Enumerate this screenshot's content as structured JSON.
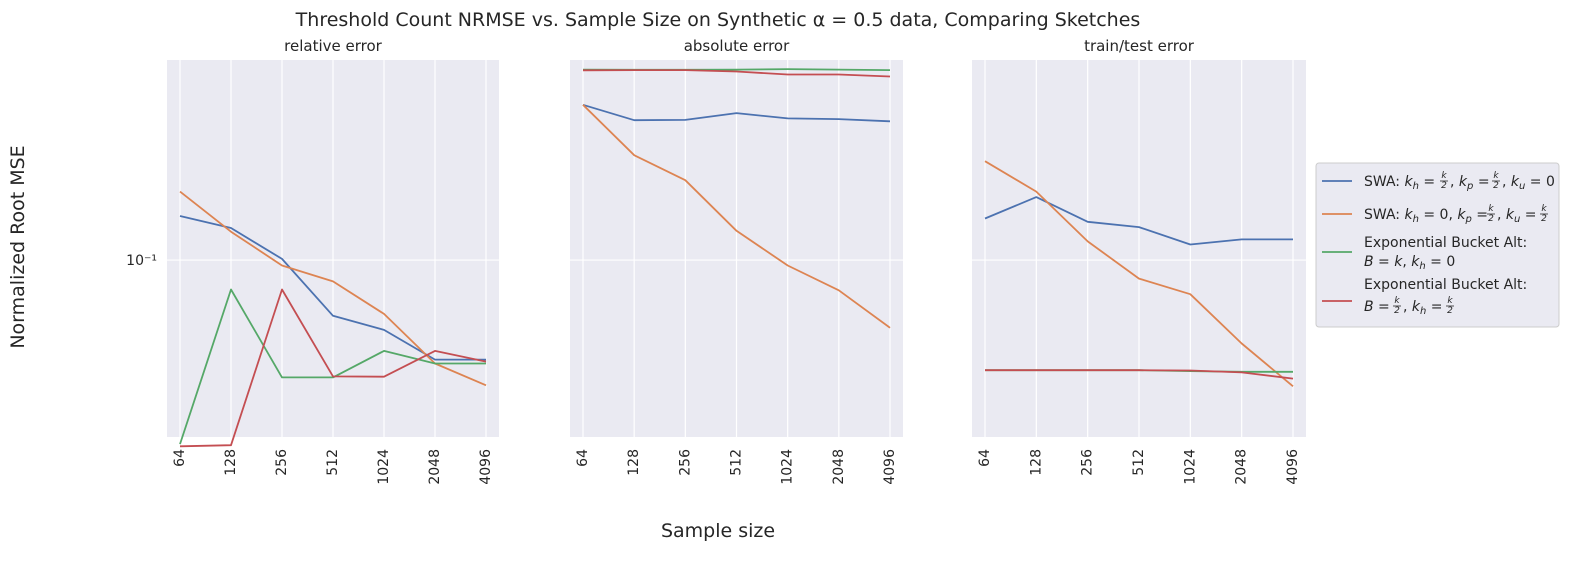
{
  "chart_data": {
    "type": "line",
    "title": "Threshold Count NRMSE vs. Sample Size on Synthetic α = 0.5 data, Comparing Sketches",
    "xlabel": "Sample size",
    "ylabel": "Normalized Root MSE",
    "categories": [
      "64",
      "128",
      "256",
      "512",
      "1024",
      "2048",
      "4096"
    ],
    "y_scale": "log",
    "ylim": [
      0.0225,
      0.54
    ],
    "y_ticks": [
      {
        "value": 0.1,
        "label": "10⁻¹"
      }
    ],
    "grid": true,
    "sharey": true,
    "legend_position": "right, outside plot area",
    "legend": [
      {
        "name": "SWA: kh = k/2, kp = k/2, ku = 0",
        "color": "#4c72b0"
      },
      {
        "name": "SWA: kh = 0, kp = k/2, ku = k/2",
        "color": "#dd8452"
      },
      {
        "name": "Exponential Bucket Alt: B = k, kh = 0",
        "color": "#55a868"
      },
      {
        "name": "Exponential Bucket Alt: B = k/2, kh = k/2",
        "color": "#c44e52"
      }
    ],
    "panels": [
      {
        "title": "relative error",
        "series": [
          {
            "name": "SWA: kh = k/2, kp = k/2, ku = 0",
            "color": "#4c72b0",
            "values": [
              0.145,
              0.131,
              0.101,
              0.0625,
              0.0555,
              0.0432,
              0.0432
            ]
          },
          {
            "name": "SWA: kh = 0, kp = k/2, ku = k/2",
            "color": "#dd8452",
            "values": [
              0.178,
              0.127,
              0.0955,
              0.0835,
              0.0635,
              0.0418,
              0.0348
            ]
          },
          {
            "name": "Exponential Bucket Alt: B = k, kh = 0",
            "color": "#55a868",
            "values": [
              0.0212,
              0.078,
              0.0372,
              0.0372,
              0.0465,
              0.0418,
              0.0418
            ]
          },
          {
            "name": "Exponential Bucket Alt: B = k/2, kh = k/2",
            "color": "#c44e52",
            "values": [
              0.0208,
              0.021,
              0.078,
              0.0375,
              0.0374,
              0.0465,
              0.0425
            ]
          }
        ]
      },
      {
        "title": "absolute error",
        "series": [
          {
            "name": "SWA: kh = k/2, kp = k/2, ku = 0",
            "color": "#4c72b0",
            "values": [
              0.37,
              0.325,
              0.326,
              0.345,
              0.33,
              0.328,
              0.322
            ]
          },
          {
            "name": "SWA: kh = 0, kp = k/2, ku = k/2",
            "color": "#dd8452",
            "values": [
              0.37,
              0.242,
              0.196,
              0.128,
              0.0955,
              0.0775,
              0.0565
            ]
          },
          {
            "name": "Exponential Bucket Alt: B = k, kh = 0",
            "color": "#55a868",
            "values": [
              0.498,
              0.497,
              0.497,
              0.498,
              0.5,
              0.498,
              0.496
            ]
          },
          {
            "name": "Exponential Bucket Alt: B = k/2, kh = k/2",
            "color": "#c44e52",
            "values": [
              0.495,
              0.496,
              0.496,
              0.49,
              0.478,
              0.478,
              0.47
            ]
          }
        ]
      },
      {
        "title": "train/test error",
        "series": [
          {
            "name": "SWA: kh = k/2, kp = k/2, ku = 0",
            "color": "#4c72b0",
            "values": [
              0.142,
              0.17,
              0.138,
              0.132,
              0.114,
              0.119,
              0.119
            ]
          },
          {
            "name": "SWA: kh = 0, kp = k/2, ku = k/2",
            "color": "#dd8452",
            "values": [
              0.23,
              0.178,
              0.117,
              0.0855,
              0.075,
              0.0495,
              0.0345
            ]
          },
          {
            "name": "Exponential Bucket Alt: B = k, kh = 0",
            "color": "#55a868",
            "values": [
              0.0395,
              0.0395,
              0.0395,
              0.0395,
              0.0392,
              0.039,
              0.039
            ]
          },
          {
            "name": "Exponential Bucket Alt: B = k/2, kh = k/2",
            "color": "#c44e52",
            "values": [
              0.0395,
              0.0395,
              0.0395,
              0.0395,
              0.0394,
              0.0388,
              0.0368
            ]
          }
        ]
      }
    ]
  }
}
